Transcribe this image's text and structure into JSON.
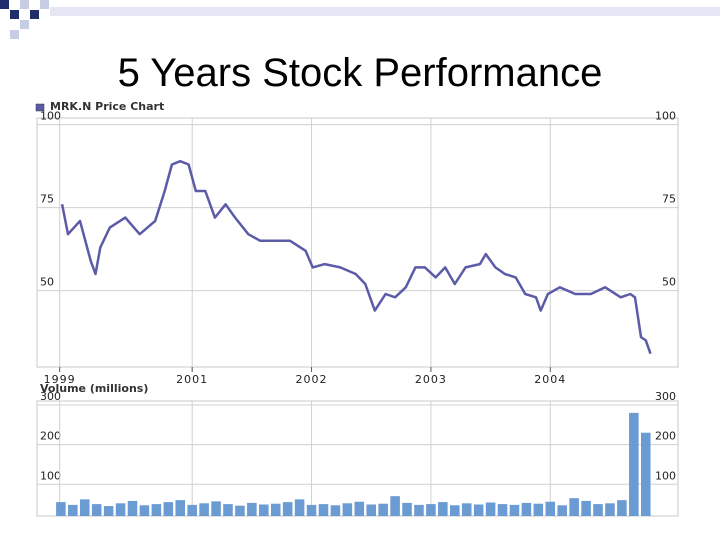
{
  "title": "5 Years Stock Performance",
  "chart_data": [
    {
      "type": "line",
      "title": "MRK.N Price Chart",
      "color": "#5b5ba8",
      "grid": true,
      "x": [
        1999.91,
        1999.96,
        2000.06,
        2000.15,
        2000.19,
        2000.23,
        2000.31,
        2000.44,
        2000.56,
        2000.69,
        2000.77,
        2000.83,
        2000.9,
        2000.97,
        2001.03,
        2001.11,
        2001.19,
        2001.28,
        2001.36,
        2001.47,
        2001.57,
        2001.7,
        2001.82,
        2001.95,
        2002.01,
        2002.11,
        2002.24,
        2002.37,
        2002.45,
        2002.53,
        2002.62,
        2002.7,
        2002.79,
        2002.87,
        2002.95,
        2003.04,
        2003.12,
        2003.2,
        2003.29,
        2003.41,
        2003.46,
        2003.54,
        2003.62,
        2003.71,
        2003.79,
        2003.88,
        2003.92,
        2003.98,
        2004.08,
        2004.21,
        2004.34,
        2004.46,
        2004.59,
        2004.67,
        2004.71,
        2004.76,
        2004.8,
        2004.84
      ],
      "values": [
        76,
        67,
        71,
        59,
        55,
        63,
        69,
        72,
        67,
        71,
        80,
        88,
        89,
        88,
        80,
        80,
        72,
        76,
        72,
        67,
        65,
        65,
        65,
        62,
        57,
        58,
        57,
        55,
        52,
        44,
        49,
        48,
        51,
        57,
        57,
        54,
        57,
        52,
        57,
        58,
        61,
        57,
        55,
        54,
        49,
        48,
        44,
        49,
        51,
        49,
        49,
        51,
        48,
        49,
        48,
        36,
        35,
        31
      ],
      "xlim": [
        1999.7,
        2005.07
      ],
      "ylim": [
        27,
        102
      ],
      "xticks": [
        {
          "value": 1999.89,
          "label": "1999"
        },
        2001,
        2002,
        2003,
        2004
      ],
      "yticks": [
        100,
        75,
        50
      ]
    },
    {
      "type": "bar",
      "title": "Volume (millions)",
      "color": "#6a9bd3",
      "grid": true,
      "x": [
        1999.9,
        2000.0,
        2000.1,
        2000.2,
        2000.3,
        2000.4,
        2000.5,
        2000.6,
        2000.7,
        2000.8,
        2000.9,
        2001.0,
        2001.1,
        2001.2,
        2001.3,
        2001.4,
        2001.5,
        2001.6,
        2001.7,
        2001.8,
        2001.9,
        2002.0,
        2002.1,
        2002.2,
        2002.3,
        2002.4,
        2002.5,
        2002.6,
        2002.7,
        2002.8,
        2002.9,
        2003.0,
        2003.1,
        2003.2,
        2003.3,
        2003.4,
        2003.5,
        2003.6,
        2003.7,
        2003.8,
        2003.9,
        2004.0,
        2004.1,
        2004.2,
        2004.3,
        2004.4,
        2004.5,
        2004.6,
        2004.7,
        2004.8
      ],
      "values": [
        55,
        48,
        62,
        50,
        45,
        52,
        58,
        47,
        50,
        55,
        60,
        48,
        52,
        57,
        50,
        46,
        53,
        49,
        51,
        55,
        62,
        48,
        50,
        47,
        52,
        56,
        49,
        51,
        70,
        53,
        48,
        50,
        55,
        47,
        52,
        49,
        54,
        50,
        48,
        53,
        51,
        56,
        47,
        65,
        58,
        50,
        52,
        60,
        280,
        230
      ],
      "xlim": [
        1999.7,
        2005.07
      ],
      "ylim": [
        20,
        310
      ],
      "yticks": [
        300,
        200,
        100
      ]
    }
  ]
}
